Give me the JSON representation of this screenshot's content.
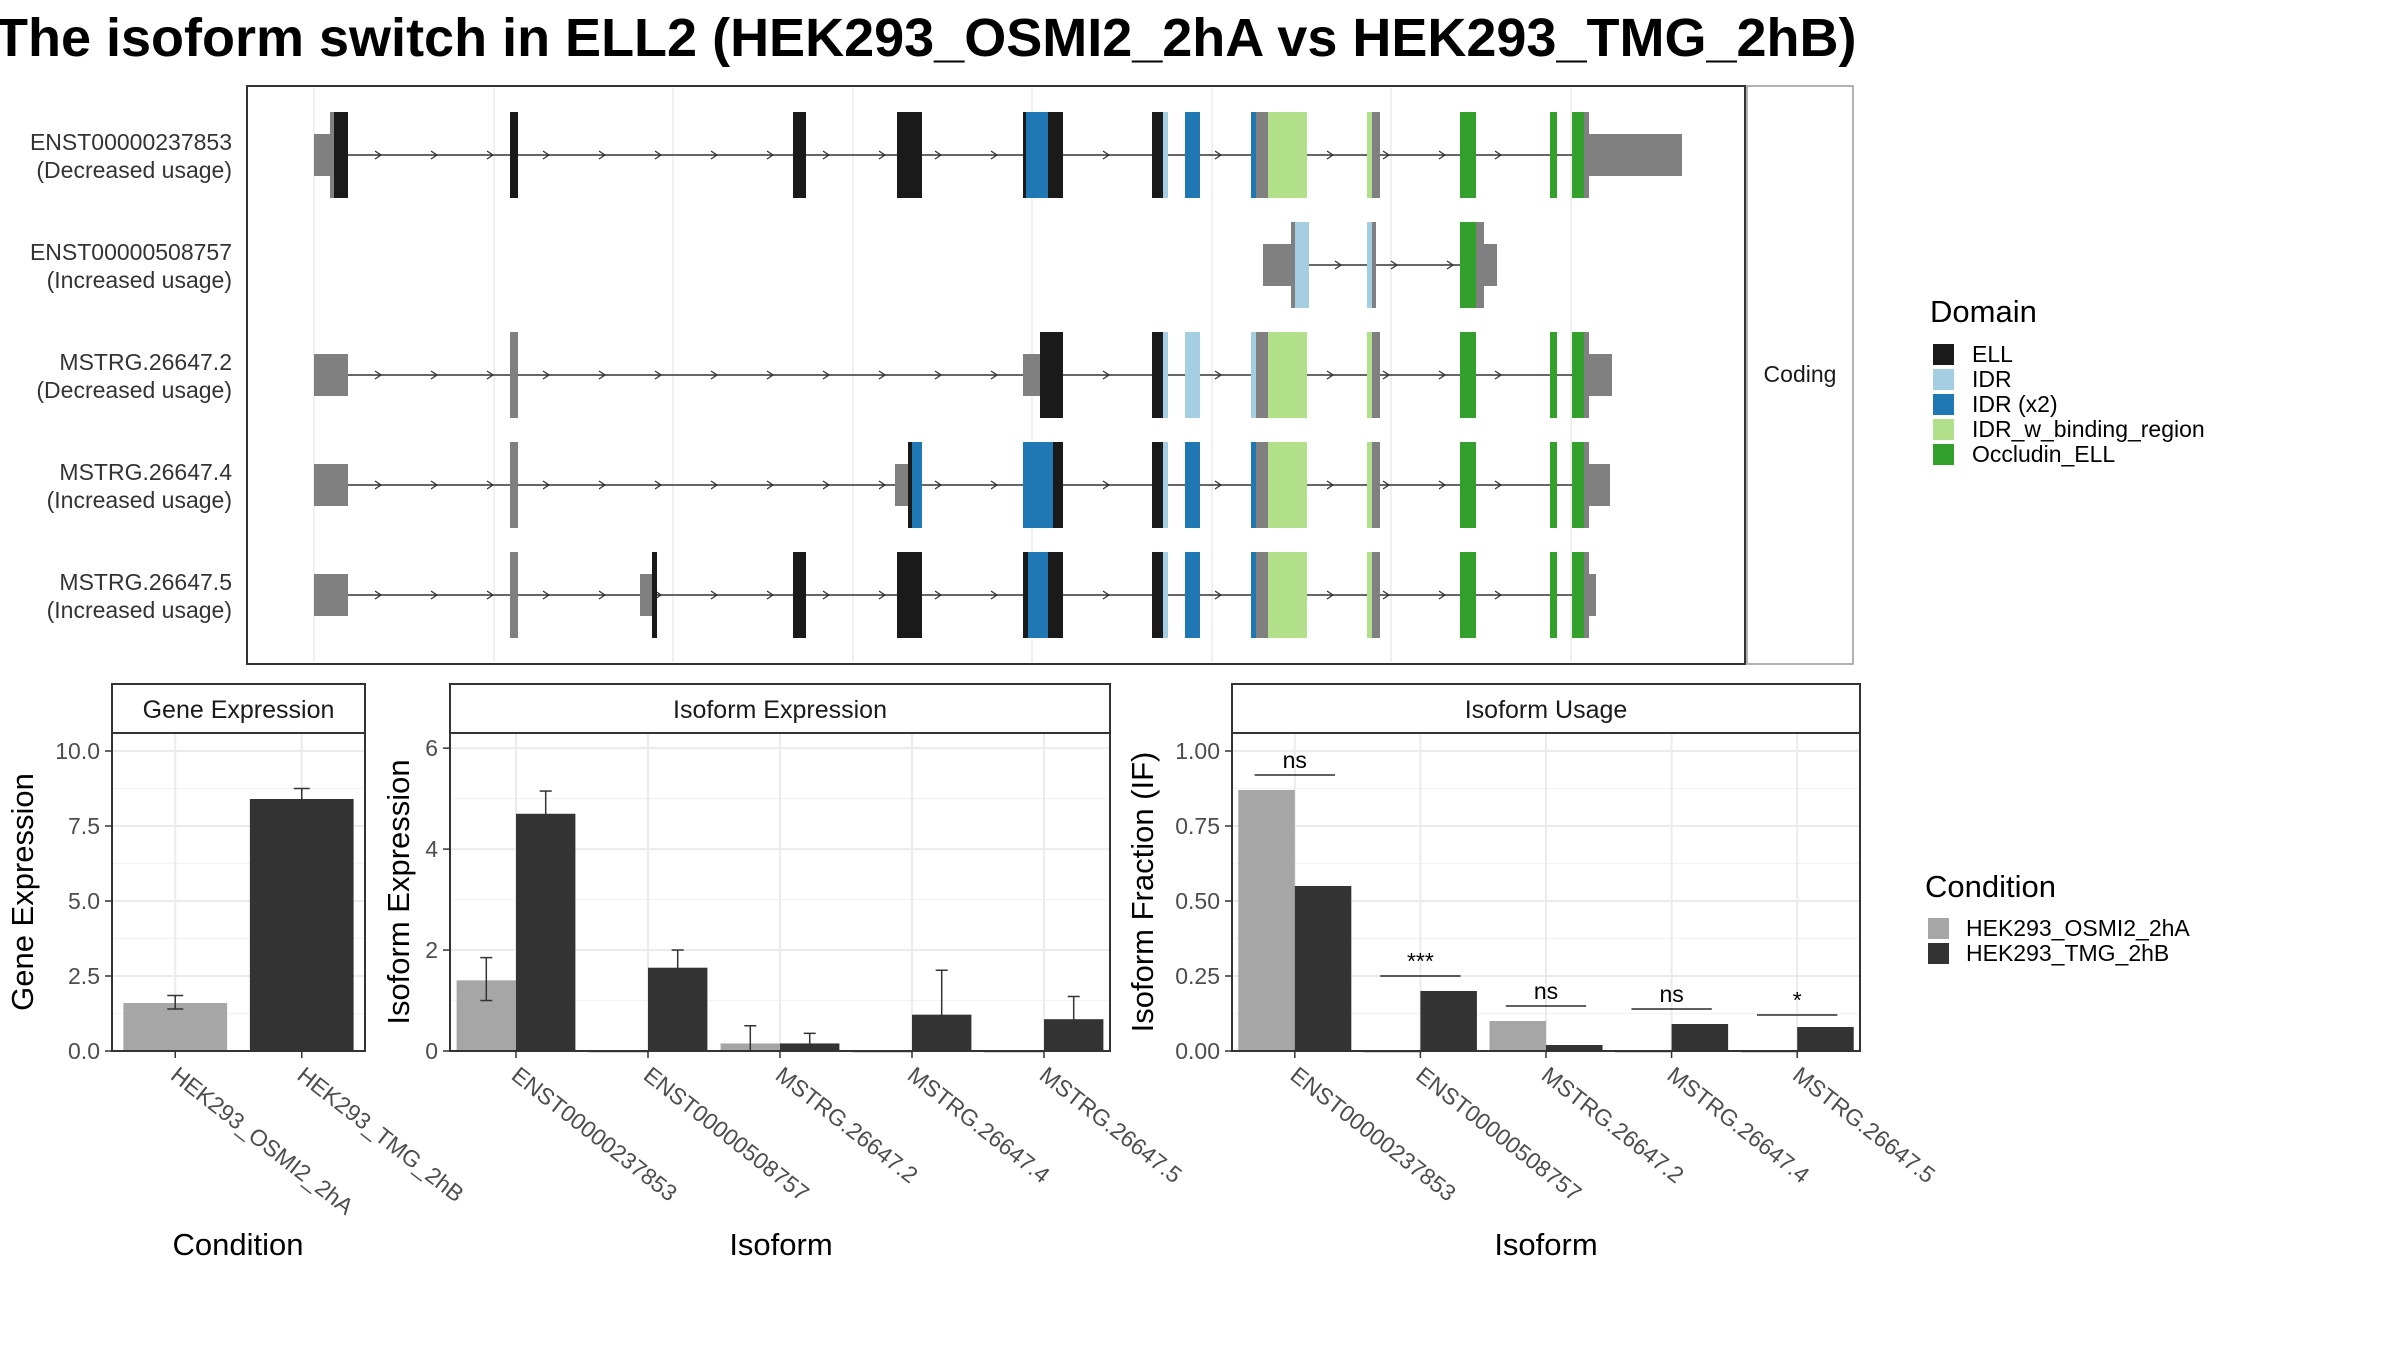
{
  "title": "The isoform switch in ELL2 (HEK293_OSMI2_2hA vs HEK293_TMG_2hB)",
  "colors": {
    "intron": "#333333",
    "utr": "#808080",
    "cond1": "#a6a6a6",
    "cond2": "#333333",
    "panel_border": "#333333",
    "strip_fill": "#ffffff",
    "grid": "#ebebeb"
  },
  "transcript_panel": {
    "facet_label": "Coding",
    "transcripts": [
      {
        "id": "ENST00000237853",
        "usage": "(Decreased usage)"
      },
      {
        "id": "ENST00000508757",
        "usage": "(Increased usage)"
      },
      {
        "id": "MSTRG.26647.2",
        "usage": "(Decreased usage)"
      },
      {
        "id": "MSTRG.26647.4",
        "usage": "(Increased usage)"
      },
      {
        "id": "MSTRG.26647.5",
        "usage": "(Increased usage)"
      }
    ]
  },
  "legends": {
    "domain_title": "Domain",
    "domains": [
      {
        "name": "ELL",
        "color": "#1a1a1a"
      },
      {
        "name": "IDR",
        "color": "#a6cee3"
      },
      {
        "name": "IDR (x2)",
        "color": "#1f78b4"
      },
      {
        "name": "IDR_w_binding_region",
        "color": "#b2df8a"
      },
      {
        "name": "Occludin_ELL",
        "color": "#33a02c"
      }
    ],
    "condition_title": "Condition",
    "conditions": [
      {
        "name": "HEK293_OSMI2_2hA",
        "color": "#a6a6a6"
      },
      {
        "name": "HEK293_TMG_2hB",
        "color": "#333333"
      }
    ]
  },
  "chart_data": [
    {
      "type": "bar",
      "title": "Gene Expression",
      "xlabel": "Condition",
      "ylabel": "Gene Expression",
      "ylim": [
        0,
        10.6
      ],
      "yticks": [
        0,
        2.5,
        5,
        7.5,
        10
      ],
      "ytick_labels": [
        "0.0",
        "2.5",
        "5.0",
        "7.5",
        "10.0"
      ],
      "categories": [
        "HEK293_OSMI2_2hA",
        "HEK293_TMG_2hB"
      ],
      "values": [
        1.6,
        8.4
      ],
      "errors": [
        [
          1.4,
          1.85
        ],
        [
          8.1,
          8.75
        ]
      ]
    },
    {
      "type": "bar",
      "title": "Isoform Expression",
      "xlabel": "Isoform",
      "ylabel": "Isoform Expression",
      "ylim": [
        0,
        6.3
      ],
      "yticks": [
        0,
        2,
        4,
        6
      ],
      "ytick_labels": [
        "0",
        "2",
        "4",
        "6"
      ],
      "categories": [
        "ENST00000237853",
        "ENST00000508757",
        "MSTRG.26647.2",
        "MSTRG.26647.4",
        "MSTRG.26647.5"
      ],
      "series": [
        {
          "name": "HEK293_OSMI2_2hA",
          "values": [
            1.4,
            0.0,
            0.15,
            0.0,
            0.0
          ],
          "errors": [
            [
              1.0,
              1.85
            ],
            null,
            [
              0.0,
              0.5
            ],
            null,
            null
          ]
        },
        {
          "name": "HEK293_TMG_2hB",
          "values": [
            4.7,
            1.65,
            0.15,
            0.72,
            0.63
          ],
          "errors": [
            [
              4.2,
              5.15
            ],
            [
              1.25,
              2.0
            ],
            [
              0.0,
              0.35
            ],
            [
              0.0,
              1.6
            ],
            [
              0.18,
              1.08
            ]
          ]
        }
      ]
    },
    {
      "type": "bar",
      "title": "Isoform Usage",
      "xlabel": "Isoform",
      "ylabel": "Isoform Fraction (IF)",
      "ylim": [
        0,
        1.06
      ],
      "yticks": [
        0,
        0.25,
        0.5,
        0.75,
        1
      ],
      "ytick_labels": [
        "0.00",
        "0.25",
        "0.50",
        "0.75",
        "1.00"
      ],
      "categories": [
        "ENST00000237853",
        "ENST00000508757",
        "MSTRG.26647.2",
        "MSTRG.26647.4",
        "MSTRG.26647.5"
      ],
      "series": [
        {
          "name": "HEK293_OSMI2_2hA",
          "values": [
            0.87,
            0.0,
            0.1,
            0.0,
            0.0
          ]
        },
        {
          "name": "HEK293_TMG_2hB",
          "values": [
            0.55,
            0.2,
            0.02,
            0.09,
            0.08
          ]
        }
      ],
      "significance": [
        "ns",
        "***",
        "ns",
        "ns",
        "*"
      ],
      "significance_y": [
        0.92,
        0.25,
        0.15,
        0.14,
        0.12
      ]
    }
  ]
}
